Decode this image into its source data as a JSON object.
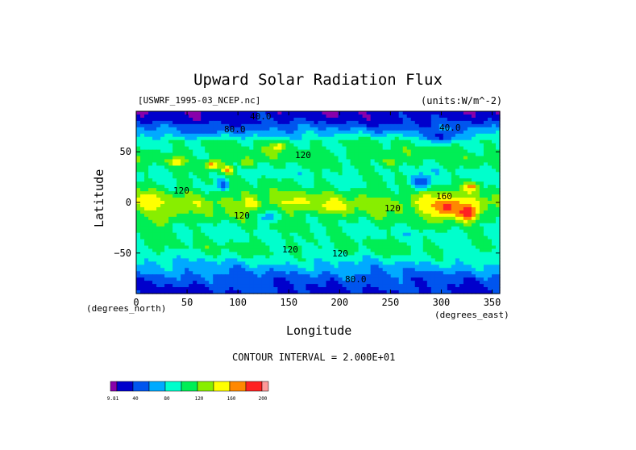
{
  "chart_data": {
    "type": "heatmap",
    "title": "Upward Solar Radiation Flux",
    "subtitle_left": "[USWRF_1995-03_NCEP.nc]",
    "subtitle_right": "(units:W/m^-2)",
    "xlabel": "Longitude",
    "ylabel": "Latitude",
    "x_unit_label": "(degrees_east)",
    "y_unit_label": "(degrees_north)",
    "xlim": [
      0,
      357.5
    ],
    "ylim": [
      -90,
      90
    ],
    "x_ticks": [
      "0",
      "50",
      "100",
      "150",
      "200",
      "250",
      "300",
      "350"
    ],
    "y_ticks": [
      "50",
      "0",
      "−50"
    ],
    "x_tick_values": [
      0,
      50,
      100,
      150,
      200,
      250,
      300,
      350
    ],
    "y_tick_values": [
      50,
      0,
      -50
    ],
    "contour_interval_text": "CONTOUR INTERVAL = 2.000E+01",
    "contour_labels": [
      "40.0",
      "80.0",
      "40.0",
      "120",
      "120",
      "120",
      "120",
      "120",
      "80.0",
      "160",
      "120"
    ],
    "colorbar": {
      "colors": [
        "#8800aa",
        "#0000cc",
        "#0055ee",
        "#00aaff",
        "#00ffcc",
        "#00ee55",
        "#88ee00",
        "#ffff00",
        "#ff8800",
        "#ff2222",
        "#ff9999"
      ],
      "labels": [
        "9.81",
        "40",
        "80",
        "120",
        "160",
        "200"
      ]
    },
    "field": {
      "zonal_bands": [
        {
          "lat": 90,
          "value": 25
        },
        {
          "lat": 80,
          "value": 35
        },
        {
          "lat": 72,
          "value": 60
        },
        {
          "lat": 60,
          "value": 100
        },
        {
          "lat": 45,
          "value": 110
        },
        {
          "lat": 30,
          "value": 95
        },
        {
          "lat": 15,
          "value": 105
        },
        {
          "lat": 0,
          "value": 130
        },
        {
          "lat": -15,
          "value": 110
        },
        {
          "lat": -30,
          "value": 95
        },
        {
          "lat": -45,
          "value": 105
        },
        {
          "lat": -55,
          "value": 90
        },
        {
          "lat": -65,
          "value": 70
        },
        {
          "lat": -75,
          "value": 50
        },
        {
          "lat": -90,
          "value": 35
        }
      ],
      "features": [
        {
          "lon": 15,
          "lat": 0,
          "value": 155,
          "rx": 12,
          "ry": 10
        },
        {
          "lon": 25,
          "lat": -10,
          "value": 140,
          "rx": 15,
          "ry": 12
        },
        {
          "lon": 40,
          "lat": 40,
          "value": 160,
          "rx": 8,
          "ry": 4
        },
        {
          "lon": 75,
          "lat": 37,
          "value": 165,
          "rx": 8,
          "ry": 5
        },
        {
          "lon": 90,
          "lat": 32,
          "value": 170,
          "rx": 6,
          "ry": 4
        },
        {
          "lon": 85,
          "lat": 18,
          "value": 45,
          "rx": 6,
          "ry": 6
        },
        {
          "lon": 110,
          "lat": 40,
          "value": 140,
          "rx": 8,
          "ry": 5
        },
        {
          "lon": 140,
          "lat": 55,
          "value": 150,
          "rx": 8,
          "ry": 5
        },
        {
          "lon": 113,
          "lat": 0,
          "value": 160,
          "rx": 6,
          "ry": 6
        },
        {
          "lon": 130,
          "lat": -15,
          "value": 70,
          "rx": 10,
          "ry": 6
        },
        {
          "lon": 160,
          "lat": 0,
          "value": 145,
          "rx": 15,
          "ry": 7
        },
        {
          "lon": 195,
          "lat": -5,
          "value": 150,
          "rx": 15,
          "ry": 6
        },
        {
          "lon": 280,
          "lat": 20,
          "value": 40,
          "rx": 10,
          "ry": 8
        },
        {
          "lon": 285,
          "lat": 0,
          "value": 150,
          "rx": 10,
          "ry": 10
        },
        {
          "lon": 305,
          "lat": -5,
          "value": 190,
          "rx": 15,
          "ry": 10
        },
        {
          "lon": 325,
          "lat": -10,
          "value": 200,
          "rx": 10,
          "ry": 8
        },
        {
          "lon": 330,
          "lat": 15,
          "value": 170,
          "rx": 8,
          "ry": 5
        },
        {
          "lon": 250,
          "lat": 40,
          "value": 130,
          "rx": 10,
          "ry": 6
        },
        {
          "lon": 60,
          "lat": 70,
          "value": 50,
          "rx": 25,
          "ry": 6
        },
        {
          "lon": 300,
          "lat": 65,
          "value": 35,
          "rx": 15,
          "ry": 6
        }
      ]
    }
  }
}
